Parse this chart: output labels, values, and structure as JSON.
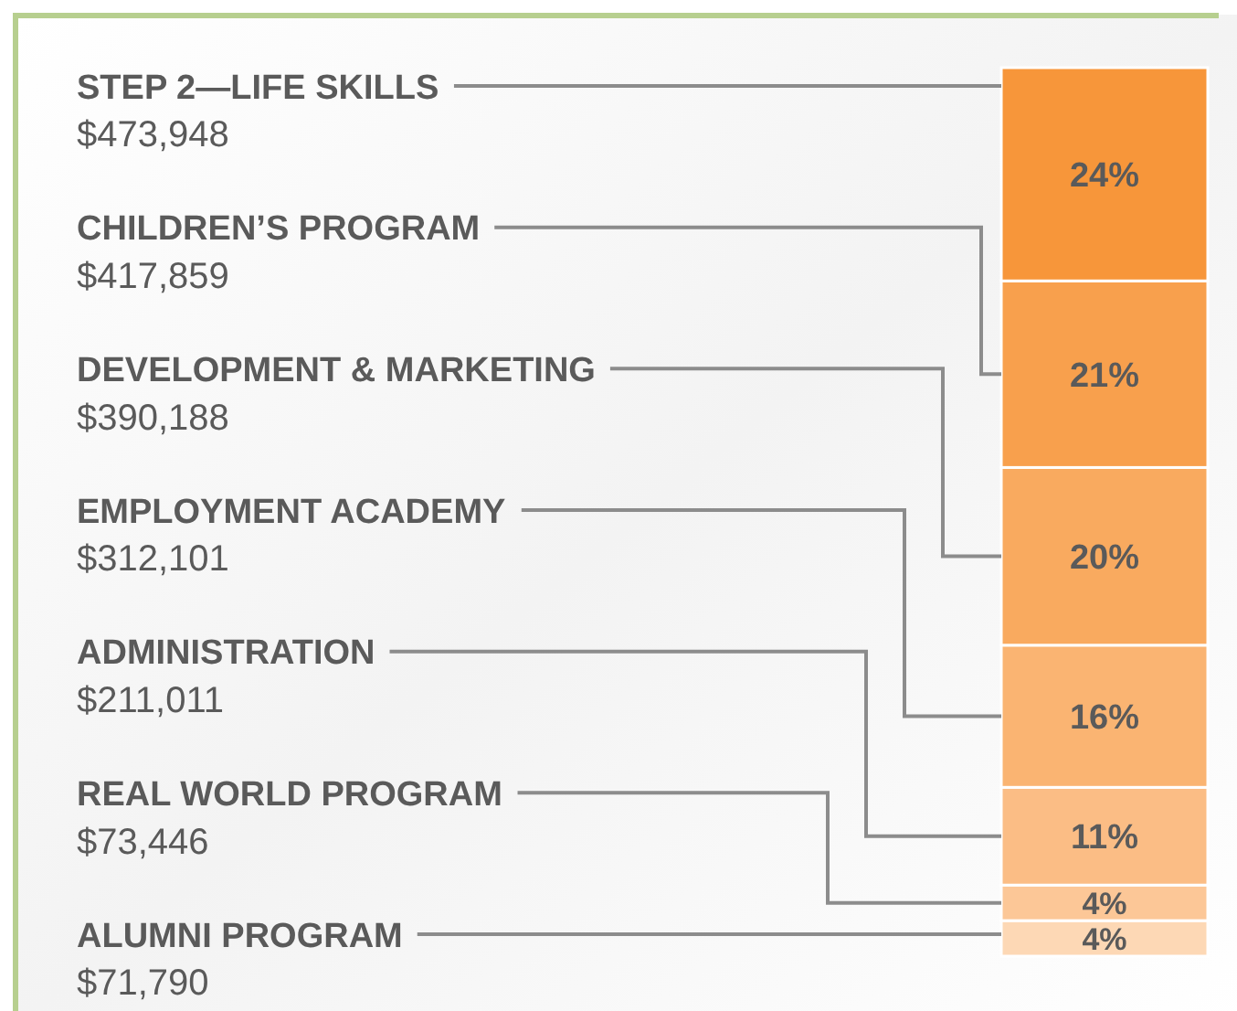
{
  "chart_data": {
    "type": "bar",
    "stacked": true,
    "categories": [
      null
    ],
    "series": [
      {
        "name": "ALUMNI PROGRAM",
        "color": "#fdd8b5",
        "values": [
          4
        ],
        "value_labels": [
          "4%"
        ]
      },
      {
        "name": "REAL WORLD PROGRAM",
        "color": "#fcc797",
        "values": [
          4
        ],
        "value_labels": [
          "4%"
        ]
      },
      {
        "name": "ADMINISTRATION",
        "color": "#fbbd85",
        "values": [
          11
        ],
        "value_labels": [
          "11%"
        ]
      },
      {
        "name": "EMPLOYMENT ACADEMY",
        "color": "#fab472",
        "values": [
          16
        ],
        "value_labels": [
          "16%"
        ]
      },
      {
        "name": "DEVELOPMENT & MARKETING",
        "color": "#f9aa5f",
        "values": [
          20
        ],
        "value_labels": [
          "20%"
        ]
      },
      {
        "name": "CHILDREN’S PROGRAM",
        "color": "#f8a04d",
        "values": [
          21
        ],
        "value_labels": [
          "21%"
        ]
      },
      {
        "name": "STEP 2—LIFE SKILLS",
        "color": "#f7963a",
        "values": [
          24
        ],
        "value_labels": [
          "24%"
        ]
      }
    ],
    "annotations": [
      "$71,790",
      "$73,446",
      "$211,011",
      "$312,101",
      "$390,188",
      "$417,859",
      "$473,948"
    ]
  }
}
